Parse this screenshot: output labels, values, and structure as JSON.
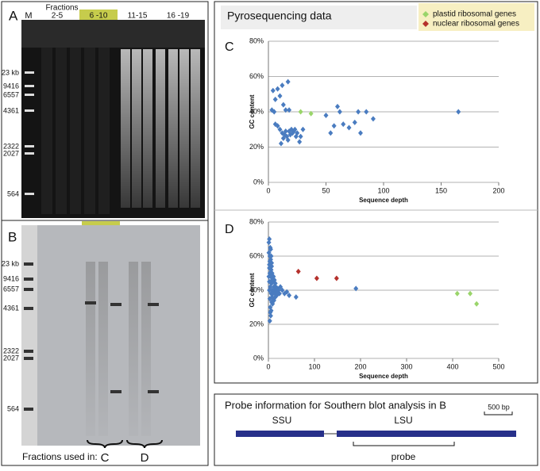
{
  "gel_a": {
    "letter": "A",
    "lane_header": "Fractions",
    "lanes": [
      "M",
      "2-5",
      "6 -10",
      "11-15",
      "16 -19"
    ],
    "markers": [
      "23 kb",
      "9416",
      "6557",
      "4361",
      "2322",
      "2027",
      "564"
    ]
  },
  "gel_b": {
    "letter": "B",
    "markers": [
      "23 kb",
      "9416",
      "6557",
      "4361",
      "2322",
      "2027",
      "564"
    ],
    "fractions_used": "Fractions used in:",
    "groups": [
      "C",
      "D"
    ]
  },
  "pyro": {
    "title": "Pyrosequencing data"
  },
  "chart_data": [
    {
      "type": "scatter",
      "panel": "C",
      "xlabel": "Sequence depth",
      "ylabel": "GC content",
      "xlim": [
        0,
        200
      ],
      "xticks": [
        0,
        50,
        100,
        150,
        200
      ],
      "ylim": [
        0,
        80
      ],
      "yticks": [
        {
          "value": 0,
          "label": "0%"
        },
        {
          "value": 20,
          "label": "20%"
        },
        {
          "value": 40,
          "label": "40%"
        },
        {
          "value": 60,
          "label": "60%"
        },
        {
          "value": 80,
          "label": "80%"
        }
      ],
      "grid": true,
      "series": [
        {
          "color": "#4a7cc0",
          "x": [
            3,
            5,
            4,
            6,
            8,
            10,
            12,
            13,
            15,
            17,
            18,
            6,
            8,
            10,
            12,
            13,
            14,
            15,
            16,
            17,
            18,
            19,
            20,
            21,
            22,
            23,
            24,
            25,
            27,
            28,
            30,
            11,
            50,
            54,
            57,
            60,
            62,
            65,
            70,
            75,
            78,
            80,
            85,
            91,
            165
          ],
          "y": [
            41,
            40,
            52,
            47,
            53,
            49,
            55,
            44,
            41,
            57,
            41,
            33,
            32,
            30,
            28,
            25,
            27,
            29,
            26,
            24,
            29,
            27,
            30,
            28,
            29,
            30,
            26,
            28,
            23,
            26,
            30,
            22,
            38,
            28,
            32,
            43,
            40,
            33,
            31,
            34,
            40,
            28,
            40,
            36,
            40
          ]
        },
        {
          "name": "plastid ribosomal genes",
          "color": "#9ad56a",
          "x": [
            28,
            37
          ],
          "y": [
            40,
            39
          ]
        }
      ]
    },
    {
      "type": "scatter",
      "panel": "D",
      "xlabel": "Sequence depth",
      "ylabel": "GC content",
      "xlim": [
        0,
        500
      ],
      "xticks": [
        0,
        100,
        200,
        300,
        400,
        500
      ],
      "ylim": [
        0,
        80
      ],
      "yticks": [
        {
          "value": 0,
          "label": "0%"
        },
        {
          "value": 20,
          "label": "20%"
        },
        {
          "value": 40,
          "label": "40%"
        },
        {
          "value": 60,
          "label": "60%"
        },
        {
          "value": 80,
          "label": "80%"
        }
      ],
      "grid": true,
      "series": [
        {
          "color": "#4a7cc0",
          "x": [
            1,
            1,
            2,
            2,
            2,
            3,
            3,
            3,
            4,
            4,
            4,
            5,
            5,
            5,
            6,
            6,
            6,
            7,
            7,
            7,
            8,
            8,
            8,
            9,
            9,
            10,
            10,
            11,
            11,
            12,
            12,
            13,
            13,
            14,
            15,
            15,
            16,
            17,
            18,
            19,
            20,
            22,
            24,
            26,
            30,
            35,
            40,
            45,
            60,
            190,
            3,
            4,
            5,
            6,
            2,
            3,
            7,
            8,
            1,
            2
          ],
          "y": [
            68,
            62,
            70,
            55,
            45,
            60,
            50,
            35,
            65,
            42,
            30,
            58,
            48,
            25,
            52,
            38,
            28,
            56,
            44,
            33,
            50,
            40,
            36,
            47,
            32,
            45,
            38,
            48,
            35,
            42,
            34,
            46,
            40,
            38,
            44,
            36,
            42,
            40,
            37,
            39,
            41,
            40,
            38,
            42,
            40,
            38,
            39,
            37,
            36,
            41,
            22,
            27,
            64,
            60,
            53,
            57,
            54,
            46,
            48,
            40
          ]
        },
        {
          "name": "nuclear ribosomal genes",
          "color": "#b5312c",
          "x": [
            65,
            105,
            148
          ],
          "y": [
            51,
            47,
            47
          ]
        },
        {
          "color": "#9ad56a",
          "x": [
            410,
            438,
            452
          ],
          "y": [
            38,
            38,
            32
          ]
        }
      ]
    }
  ],
  "probe": {
    "title": "Probe information for Southern blot analysis in B",
    "scale": "500 bp",
    "ssu": "SSU",
    "lsu": "LSU",
    "probe": "probe"
  }
}
